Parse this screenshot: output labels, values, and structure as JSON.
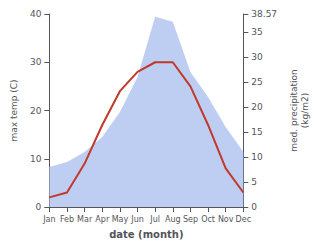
{
  "chart_data": {
    "type": "line",
    "categories": [
      "Jan",
      "Feb",
      "Mar",
      "Apr",
      "May",
      "Jun",
      "Jul",
      "Aug",
      "Sep",
      "Oct",
      "Nov",
      "Dec"
    ],
    "xlabel": "date (month)",
    "ylabel": "max temp (C)",
    "y2label": "med. precipitation\n(kg/m2)",
    "ylim": [
      0,
      40
    ],
    "yticks": [
      0,
      10,
      20,
      30,
      40
    ],
    "y2lim": [
      0,
      38.57
    ],
    "y2ticks": [
      0,
      5,
      10,
      15,
      20,
      25,
      30,
      35
    ],
    "grid": false,
    "series": [
      {
        "type": "area",
        "color": "#b3c6f0",
        "axis": "y2",
        "values": [
          8,
          9,
          11,
          14,
          19,
          26,
          38,
          37,
          27,
          22,
          16,
          11
        ]
      },
      {
        "type": "line",
        "color": "#c0392b",
        "values": [
          2,
          3,
          9,
          17,
          24,
          28,
          30,
          30,
          25,
          17,
          8,
          3
        ]
      }
    ]
  }
}
